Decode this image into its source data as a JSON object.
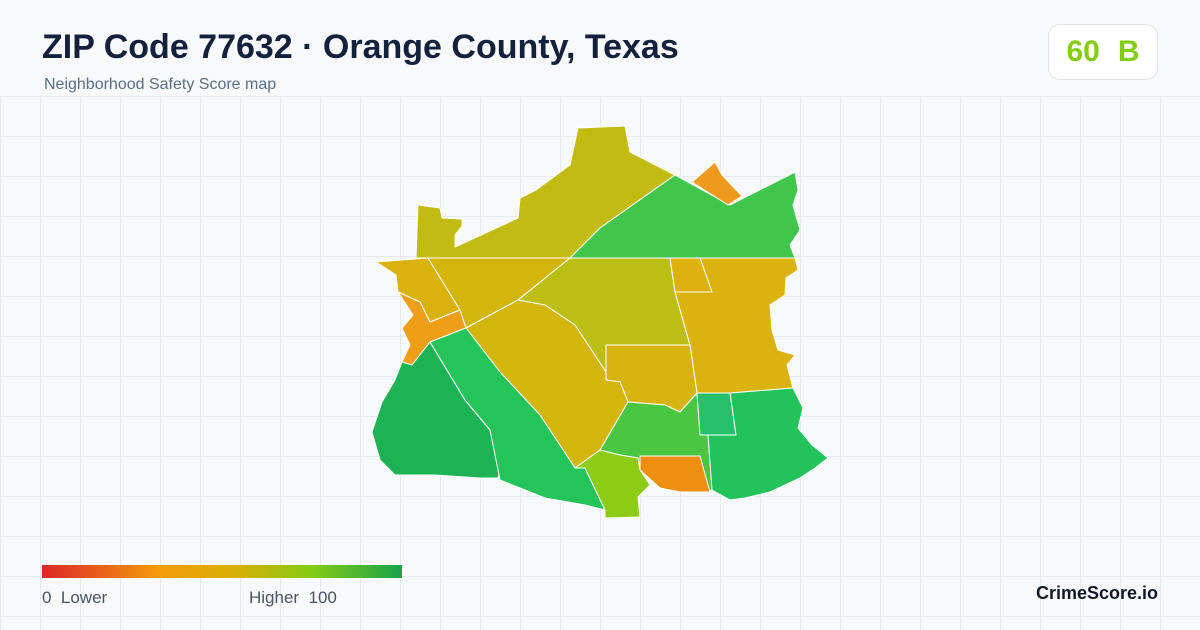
{
  "header": {
    "title": "ZIP Code 77632 · Orange County, Texas",
    "subtitle": "Neighborhood Safety Score map"
  },
  "score": {
    "value": "60",
    "grade": "B",
    "color": "#84cc16"
  },
  "legend": {
    "low_text": "0  Lower",
    "high_text": "Higher  100",
    "colors": [
      "#dc2626",
      "#f59e0b",
      "#d4b106",
      "#84cc16",
      "#16a34a"
    ]
  },
  "brand": "CrimeScore.io",
  "map": {
    "region_colors": {
      "north-west-tract": "#c2bc12",
      "north-east-tract": "#3fc64b",
      "top-orange-notch": "#ef9a1c",
      "west-strip": "#d9b20e",
      "west-orange": "#ee9f17",
      "center-band": "#d4b50c",
      "center-north": "#bcbf12",
      "east-large": "#dab30f",
      "east-small": "#ddb10e",
      "center-box": "#d7b50e",
      "south-west-large": "#1db355",
      "south-diagonal": "#25c45a",
      "center-south-green": "#4ac642",
      "south-lime": "#8ccb16",
      "south-orange": "#ee8f12",
      "south-east-small": "#27c06a",
      "south-east-large": "#22c35a"
    }
  }
}
